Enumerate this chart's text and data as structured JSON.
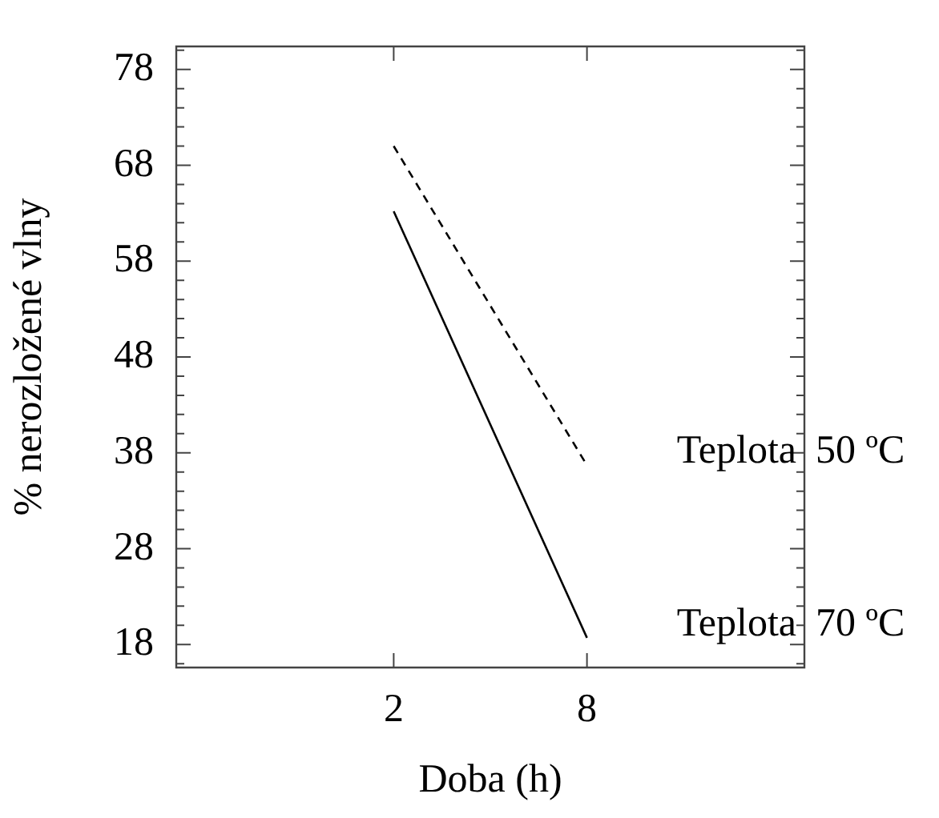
{
  "chart_data": {
    "type": "line",
    "xlabel": "Doba (h)",
    "ylabel": "% nerozložené vlny",
    "x": [
      2,
      8
    ],
    "series": [
      {
        "name": "Teplota 50 ºC",
        "color": "#000000",
        "line_style": "dashed",
        "values": [
          70.0,
          36.7
        ]
      },
      {
        "name": "Teplota 70 ºC",
        "color": "#000000",
        "line_style": "solid",
        "values": [
          63.2,
          18.7
        ]
      }
    ],
    "xlim": [
      -4.75,
      14.75
    ],
    "xticks": [
      2,
      8
    ],
    "ylim": [
      15.6,
      80.4
    ],
    "yticks": [
      {
        "value": 16,
        "label": null
      },
      18,
      {
        "value": 20,
        "label": null
      },
      {
        "value": 22,
        "label": null
      },
      {
        "value": 24,
        "label": null
      },
      {
        "value": 26,
        "label": null
      },
      28,
      {
        "value": 30,
        "label": null
      },
      {
        "value": 32,
        "label": null
      },
      {
        "value": 34,
        "label": null
      },
      {
        "value": 36,
        "label": null
      },
      38,
      {
        "value": 40,
        "label": null
      },
      {
        "value": 42,
        "label": null
      },
      {
        "value": 44,
        "label": null
      },
      {
        "value": 46,
        "label": null
      },
      48,
      {
        "value": 50,
        "label": null
      },
      {
        "value": 52,
        "label": null
      },
      {
        "value": 54,
        "label": null
      },
      {
        "value": 56,
        "label": null
      },
      58,
      {
        "value": 60,
        "label": null
      },
      {
        "value": 62,
        "label": null
      },
      {
        "value": 64,
        "label": null
      },
      {
        "value": 66,
        "label": null
      },
      68,
      {
        "value": 70,
        "label": null
      },
      {
        "value": 72,
        "label": null
      },
      {
        "value": 74,
        "label": null
      },
      {
        "value": 76,
        "label": null
      },
      78,
      {
        "value": 80,
        "label": null
      }
    ],
    "grid": false,
    "legend": false,
    "marker": "none"
  }
}
